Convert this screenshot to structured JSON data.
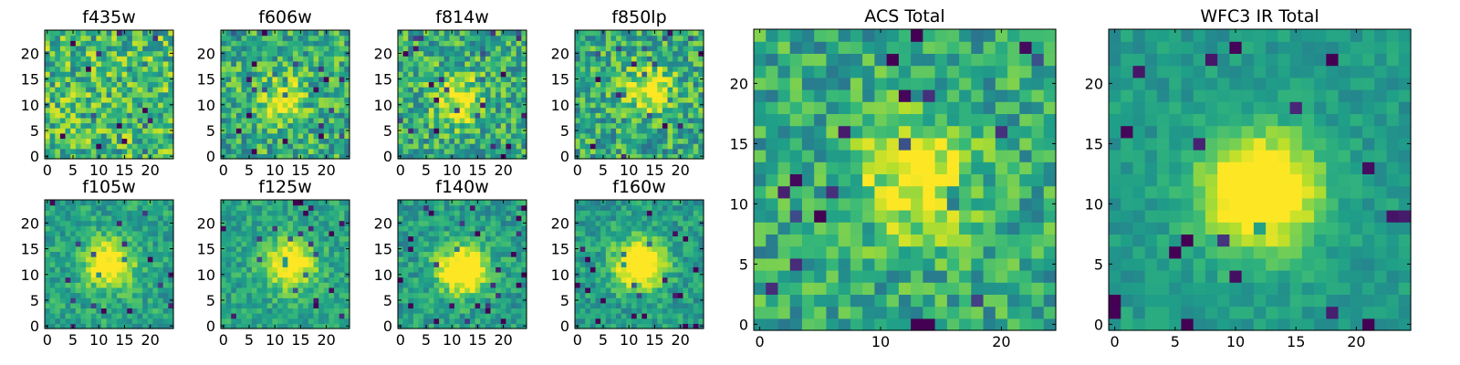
{
  "chart_data": [
    {
      "type": "heatmap",
      "title": "f435w",
      "xticks": [
        0,
        5,
        10,
        15,
        20
      ],
      "yticks": [
        0,
        5,
        10,
        15,
        20
      ],
      "xlim": [
        -0.5,
        24.5
      ],
      "ylim": [
        -0.5,
        24.5
      ],
      "grid_size": 25,
      "colormap": "viridis",
      "peak": null,
      "peak_strength": 0.0,
      "noise": 0.55,
      "seed": 11
    },
    {
      "type": "heatmap",
      "title": "f606w",
      "xticks": [
        0,
        5,
        10,
        15,
        20
      ],
      "yticks": [
        0,
        5,
        10,
        15,
        20
      ],
      "xlim": [
        -0.5,
        24.5
      ],
      "ylim": [
        -0.5,
        24.5
      ],
      "grid_size": 25,
      "colormap": "viridis",
      "peak": [
        11,
        11
      ],
      "peak_strength": 0.35,
      "noise": 0.5,
      "seed": 23
    },
    {
      "type": "heatmap",
      "title": "f814w",
      "xticks": [
        0,
        5,
        10,
        15,
        20
      ],
      "yticks": [
        0,
        5,
        10,
        15,
        20
      ],
      "xlim": [
        -0.5,
        24.5
      ],
      "ylim": [
        -0.5,
        24.5
      ],
      "grid_size": 25,
      "colormap": "viridis",
      "peak": [
        11,
        11
      ],
      "peak_strength": 0.4,
      "noise": 0.5,
      "seed": 37
    },
    {
      "type": "heatmap",
      "title": "f850lp",
      "xticks": [
        0,
        5,
        10,
        15,
        20
      ],
      "yticks": [
        0,
        5,
        10,
        15,
        20
      ],
      "xlim": [
        -0.5,
        24.5
      ],
      "ylim": [
        -0.5,
        24.5
      ],
      "grid_size": 25,
      "colormap": "viridis",
      "peak": [
        14,
        13
      ],
      "peak_strength": 0.4,
      "noise": 0.5,
      "seed": 41
    },
    {
      "type": "heatmap",
      "title": "f105w",
      "xticks": [
        0,
        5,
        10,
        15,
        20
      ],
      "yticks": [
        0,
        5,
        10,
        15,
        20
      ],
      "xlim": [
        -0.5,
        24.5
      ],
      "ylim": [
        -0.5,
        24.5
      ],
      "grid_size": 25,
      "colormap": "viridis",
      "peak": [
        12,
        12
      ],
      "peak_strength": 0.55,
      "noise": 0.3,
      "seed": 53
    },
    {
      "type": "heatmap",
      "title": "f125w",
      "xticks": [
        0,
        5,
        10,
        15,
        20
      ],
      "yticks": [
        0,
        5,
        10,
        15,
        20
      ],
      "xlim": [
        -0.5,
        24.5
      ],
      "ylim": [
        -0.5,
        24.5
      ],
      "grid_size": 25,
      "colormap": "viridis",
      "peak": [
        13,
        12
      ],
      "peak_strength": 0.55,
      "noise": 0.28,
      "seed": 61
    },
    {
      "type": "heatmap",
      "title": "f140w",
      "xticks": [
        0,
        5,
        10,
        15,
        20
      ],
      "yticks": [
        0,
        5,
        10,
        15,
        20
      ],
      "xlim": [
        -0.5,
        24.5
      ],
      "ylim": [
        -0.5,
        24.5
      ],
      "grid_size": 25,
      "colormap": "viridis",
      "peak": [
        12,
        11
      ],
      "peak_strength": 0.7,
      "noise": 0.32,
      "seed": 71
    },
    {
      "type": "heatmap",
      "title": "f160w",
      "xticks": [
        0,
        5,
        10,
        15,
        20
      ],
      "yticks": [
        0,
        5,
        10,
        15,
        20
      ],
      "xlim": [
        -0.5,
        24.5
      ],
      "ylim": [
        -0.5,
        24.5
      ],
      "grid_size": 25,
      "colormap": "viridis",
      "peak": [
        12,
        12
      ],
      "peak_strength": 0.7,
      "noise": 0.3,
      "seed": 83
    },
    {
      "type": "heatmap",
      "title": "ACS Total",
      "xticks": [
        0,
        10,
        20
      ],
      "yticks": [
        0,
        5,
        10,
        15,
        20
      ],
      "xlim": [
        -0.5,
        24.5
      ],
      "ylim": [
        -0.5,
        24.5
      ],
      "grid_size": 25,
      "colormap": "viridis",
      "peak": [
        13,
        12
      ],
      "peak_strength": 0.45,
      "noise": 0.42,
      "seed": 97
    },
    {
      "type": "heatmap",
      "title": "WFC3 IR Total",
      "xticks": [
        0,
        5,
        10,
        15,
        20
      ],
      "yticks": [
        0,
        5,
        10,
        15,
        20
      ],
      "xlim": [
        -0.5,
        24.5
      ],
      "ylim": [
        -0.5,
        24.5
      ],
      "grid_size": 25,
      "colormap": "viridis",
      "peak": [
        12,
        11
      ],
      "peak_strength": 0.75,
      "noise": 0.18,
      "seed": 101
    }
  ]
}
